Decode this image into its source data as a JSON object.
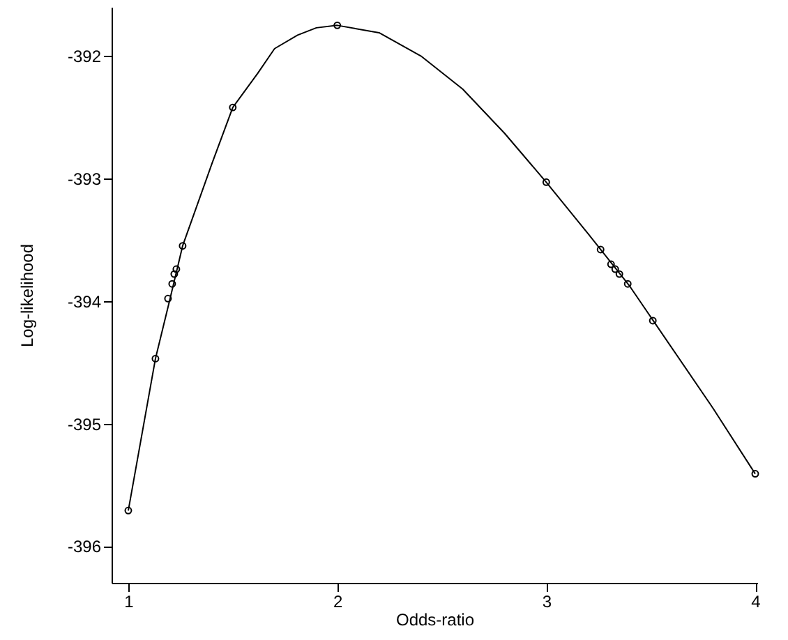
{
  "chart_data": {
    "type": "line",
    "xlabel": "Odds-ratio",
    "ylabel": "Log-likelihood",
    "xlim": [
      0.92,
      4.01
    ],
    "xticks": [
      1,
      2,
      3,
      4
    ],
    "ylim": [
      -396.3,
      -391.6
    ],
    "yticks": [
      -396,
      -395,
      -394,
      -393,
      -392
    ],
    "grid": false,
    "series": [
      {
        "color": "#000000",
        "marker": "none",
        "x": [
          1.0,
          1.13,
          1.2,
          1.26,
          1.4,
          1.5,
          1.62,
          1.7,
          1.81,
          1.9,
          2.0,
          2.2,
          2.4,
          2.6,
          2.8,
          3.0,
          3.2,
          3.4,
          3.6,
          3.8,
          4.0
        ],
        "values": [
          -395.71,
          -394.47,
          -393.98,
          -393.55,
          -392.88,
          -392.42,
          -392.14,
          -391.94,
          -391.83,
          -391.77,
          -391.75,
          -391.81,
          -392.0,
          -392.27,
          -392.63,
          -393.03,
          -393.45,
          -393.88,
          -394.38,
          -394.88,
          -395.41
        ]
      },
      {
        "type": "scatter",
        "color": "#000000",
        "marker": "circle",
        "x": [
          1.0,
          1.13,
          1.19,
          1.21,
          1.22,
          1.23,
          1.26,
          1.5,
          2.0,
          3.0,
          3.26,
          3.31,
          3.33,
          3.35,
          3.39,
          3.51,
          4.0
        ],
        "values": [
          -395.71,
          -394.47,
          -393.98,
          -393.86,
          -393.78,
          -393.74,
          -393.55,
          -392.42,
          -391.75,
          -393.03,
          -393.58,
          -393.7,
          -393.74,
          -393.78,
          -393.86,
          -394.16,
          -395.41
        ]
      }
    ]
  }
}
